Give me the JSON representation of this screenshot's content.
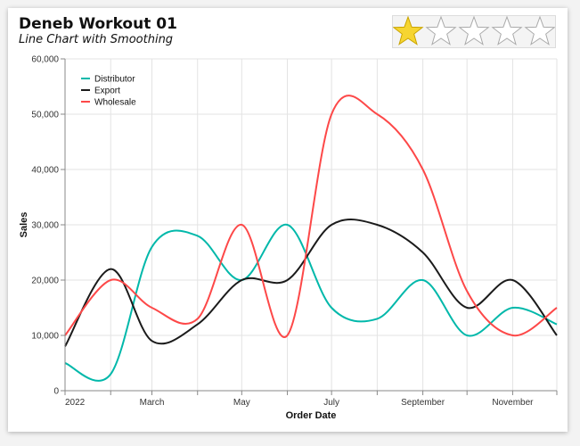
{
  "header": {
    "title": "Deneb Workout 01",
    "subtitle": "Line Chart with Smoothing"
  },
  "rating": {
    "value": 1,
    "max": 5,
    "filled_color": "#f6d531",
    "empty_color": "#ffffff",
    "stroke_color": "#aaaaaa"
  },
  "chart_data": {
    "type": "line",
    "title": "Deneb Workout 01",
    "subtitle": "Line Chart with Smoothing",
    "xlabel": "Order Date",
    "ylabel": "Sales",
    "x": [
      "2022-01-01",
      "2022-02-01",
      "2022-03-01",
      "2022-04-01",
      "2022-05-01",
      "2022-06-01",
      "2022-07-01",
      "2022-08-01",
      "2022-09-01",
      "2022-10-01",
      "2022-11-01",
      "2022-12-01"
    ],
    "x_tick_labels": [
      "2022",
      "March",
      "May",
      "July",
      "September",
      "November"
    ],
    "ylim": [
      0,
      60000
    ],
    "y_ticks": [
      0,
      10000,
      20000,
      30000,
      40000,
      50000,
      60000
    ],
    "y_tick_labels": [
      "0",
      "10,000",
      "20,000",
      "30,000",
      "40,000",
      "50,000",
      "60,000"
    ],
    "grid": true,
    "legend_position": "top-left",
    "series": [
      {
        "name": "Distributor",
        "color": "#01b8aa",
        "values": [
          5000,
          3000,
          26000,
          28000,
          20000,
          30000,
          15000,
          13000,
          20000,
          10000,
          15000,
          12000
        ]
      },
      {
        "name": "Export",
        "color": "#1b1b1b",
        "values": [
          8000,
          22000,
          9000,
          12000,
          20000,
          20000,
          30000,
          30000,
          25000,
          15000,
          20000,
          10000
        ]
      },
      {
        "name": "Wholesale",
        "color": "#fd4848",
        "values": [
          10000,
          20000,
          15000,
          13000,
          30000,
          10000,
          50000,
          50000,
          40000,
          18000,
          10000,
          15000
        ]
      }
    ]
  }
}
